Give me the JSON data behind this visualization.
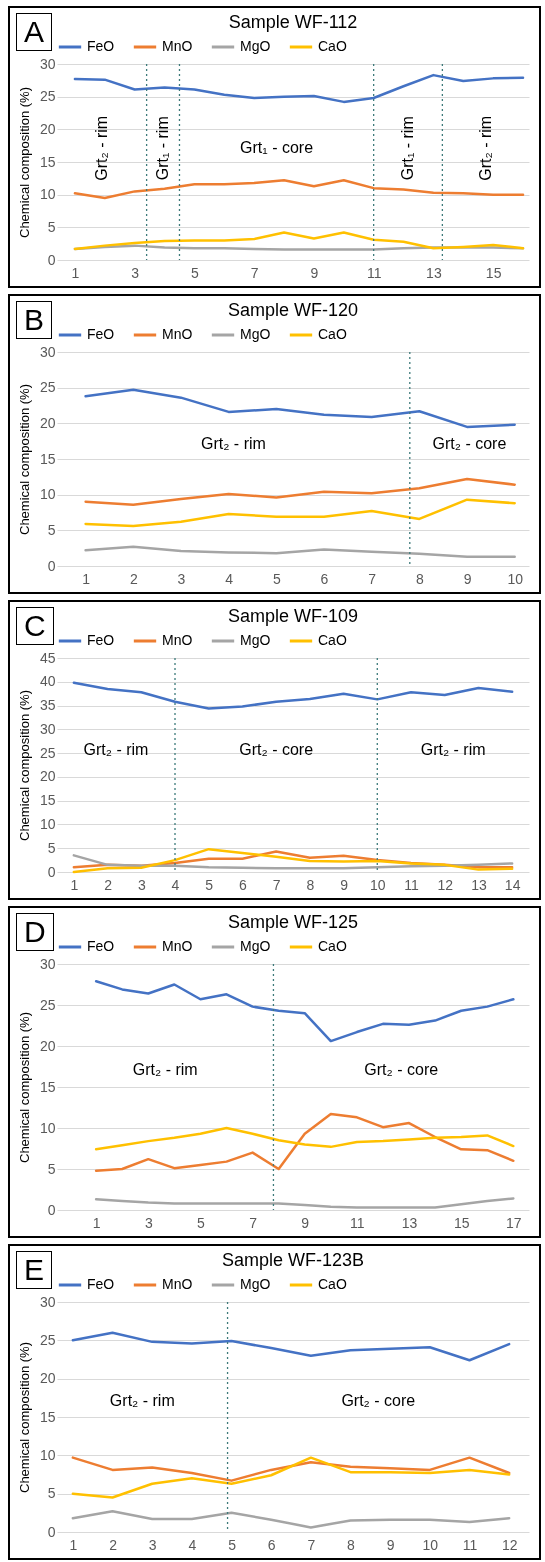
{
  "chart_data": [
    {
      "type": "line",
      "title": "Sample WF-112",
      "ylabel": "Chemical composition (%)",
      "x": [
        1,
        2,
        3,
        4,
        5,
        6,
        7,
        8,
        9,
        10,
        11,
        12,
        13,
        14,
        15,
        16
      ],
      "xlim": [
        0.4,
        16.2
      ],
      "xticks": [
        1,
        3,
        5,
        7,
        9,
        11,
        13,
        15
      ],
      "ylim": [
        0,
        30
      ],
      "yticks": [
        0,
        5,
        10,
        15,
        20,
        25,
        30
      ],
      "grid": "y",
      "legend": "top",
      "series": [
        {
          "name": "FeO",
          "color": "#4472c4",
          "values": [
            27.7,
            27.6,
            26.1,
            26.4,
            26.1,
            25.3,
            24.8,
            25.0,
            25.1,
            24.2,
            24.8,
            26.6,
            28.3,
            27.4,
            27.8,
            27.9
          ]
        },
        {
          "name": "MnO",
          "color": "#ed7d31",
          "values": [
            10.2,
            9.5,
            10.5,
            10.9,
            11.6,
            11.6,
            11.8,
            12.2,
            11.3,
            12.2,
            11.0,
            10.8,
            10.3,
            10.2,
            10.0,
            10.0
          ]
        },
        {
          "name": "MgO",
          "color": "#a5a5a5",
          "values": [
            1.7,
            2.0,
            2.2,
            1.9,
            1.8,
            1.8,
            1.7,
            1.6,
            1.6,
            1.6,
            1.6,
            1.8,
            1.9,
            1.9,
            1.9,
            1.8
          ]
        },
        {
          "name": "CaO",
          "color": "#ffc000",
          "values": [
            1.7,
            2.2,
            2.6,
            2.9,
            3.0,
            3.0,
            3.2,
            4.2,
            3.3,
            4.2,
            3.1,
            2.8,
            1.8,
            2.0,
            2.3,
            1.8
          ]
        }
      ],
      "ref_lines": [
        {
          "axis": "x",
          "value": 3.4,
          "color": "#3d7a7a",
          "line_style": "dotted"
        },
        {
          "axis": "x",
          "value": 4.5,
          "color": "#3d7a7a",
          "line_style": "dotted"
        },
        {
          "axis": "x",
          "value": 11,
          "color": "#3d7a7a",
          "line_style": "dotted"
        },
        {
          "axis": "x",
          "value": 13.3,
          "color": "#3d7a7a",
          "line_style": "dotted"
        }
      ],
      "annotations": [
        "A",
        "Grt₂ - rim",
        "Grt₁ - rim",
        "Grt₁ - core",
        "Grt₁ - rim",
        "Grt₂ - rim"
      ]
    },
    {
      "type": "line",
      "title": "Sample WF-120",
      "ylabel": "Chemical composition (%)",
      "x": [
        1,
        2,
        3,
        4,
        5,
        6,
        7,
        8,
        9,
        10
      ],
      "xlim": [
        0.4,
        10.3
      ],
      "xticks": [
        1,
        2,
        3,
        4,
        5,
        6,
        7,
        8,
        9,
        10
      ],
      "ylim": [
        0,
        30
      ],
      "yticks": [
        0,
        5,
        10,
        15,
        20,
        25,
        30
      ],
      "grid": "y",
      "legend": "top",
      "series": [
        {
          "name": "FeO",
          "color": "#4472c4",
          "values": [
            23.8,
            24.7,
            23.6,
            21.6,
            22.0,
            21.2,
            20.9,
            21.7,
            19.5,
            19.8
          ]
        },
        {
          "name": "MnO",
          "color": "#ed7d31",
          "values": [
            9.0,
            8.6,
            9.4,
            10.1,
            9.6,
            10.4,
            10.2,
            10.9,
            12.2,
            11.4
          ]
        },
        {
          "name": "MgO",
          "color": "#a5a5a5",
          "values": [
            2.2,
            2.7,
            2.1,
            1.9,
            1.8,
            2.3,
            2.0,
            1.7,
            1.3,
            1.3
          ]
        },
        {
          "name": "CaO",
          "color": "#ffc000",
          "values": [
            5.9,
            5.6,
            6.2,
            7.3,
            6.9,
            6.9,
            7.7,
            6.6,
            9.3,
            8.8
          ]
        }
      ],
      "ref_lines": [
        {
          "axis": "x",
          "value": 7.8,
          "color": "#3d7a7a",
          "line_style": "dotted"
        }
      ],
      "annotations": [
        "B",
        "Grt₂ - rim",
        "Grt₂ - core"
      ]
    },
    {
      "type": "line",
      "title": "Sample WF-109",
      "ylabel": "Chemical composition (%)",
      "x": [
        1,
        2,
        3,
        4,
        5,
        6,
        7,
        8,
        9,
        10,
        11,
        12,
        13,
        14
      ],
      "xlim": [
        0.5,
        14.5
      ],
      "xticks": [
        1,
        2,
        3,
        4,
        5,
        6,
        7,
        8,
        9,
        10,
        11,
        12,
        13,
        14
      ],
      "ylim": [
        0,
        45
      ],
      "yticks": [
        0,
        5,
        10,
        15,
        20,
        25,
        30,
        35,
        40,
        45
      ],
      "grid": "y",
      "legend": "top",
      "series": [
        {
          "name": "FeO",
          "color": "#4472c4",
          "values": [
            39.8,
            38.5,
            37.8,
            35.8,
            34.4,
            34.8,
            35.8,
            36.4,
            37.5,
            36.3,
            37.8,
            37.2,
            38.7,
            37.9
          ]
        },
        {
          "name": "MnO",
          "color": "#ed7d31",
          "values": [
            1.0,
            1.5,
            1.3,
            1.9,
            2.8,
            2.8,
            4.3,
            3.0,
            3.4,
            2.5,
            1.9,
            1.5,
            1.0,
            1.0
          ]
        },
        {
          "name": "MgO",
          "color": "#a5a5a5",
          "values": [
            3.5,
            1.5,
            1.3,
            1.3,
            1.0,
            0.9,
            0.8,
            0.8,
            0.8,
            1.0,
            1.2,
            1.3,
            1.5,
            1.8
          ]
        },
        {
          "name": "CaO",
          "color": "#ffc000",
          "values": [
            0.0,
            0.8,
            0.9,
            2.5,
            4.8,
            4.0,
            3.2,
            2.3,
            2.2,
            2.3,
            1.8,
            1.5,
            0.5,
            0.7
          ]
        }
      ],
      "ref_lines": [
        {
          "axis": "x",
          "value": 4,
          "color": "#3d7a7a",
          "line_style": "dotted"
        },
        {
          "axis": "x",
          "value": 10,
          "color": "#3d7a7a",
          "line_style": "dotted"
        }
      ],
      "annotations": [
        "C",
        "Grt₂ - rim",
        "Grt₂ - core",
        "Grt₂ - rim"
      ]
    },
    {
      "type": "line",
      "title": "Sample WF-125",
      "ylabel": "Chemical composition (%)",
      "x": [
        1,
        2,
        3,
        4,
        5,
        6,
        7,
        8,
        9,
        10,
        11,
        12,
        13,
        14,
        15,
        16,
        17
      ],
      "xlim": [
        -0.5,
        17.6
      ],
      "xticks": [
        1,
        3,
        5,
        7,
        9,
        11,
        13,
        15,
        17
      ],
      "ylim": [
        0,
        30
      ],
      "yticks": [
        0,
        5,
        10,
        15,
        20,
        25,
        30
      ],
      "grid": "y",
      "legend": "top",
      "series": [
        {
          "name": "FeO",
          "color": "#4472c4",
          "values": [
            27.9,
            26.9,
            26.4,
            27.5,
            25.7,
            26.3,
            24.8,
            24.3,
            24.0,
            20.6,
            21.7,
            22.7,
            22.6,
            23.1,
            24.3,
            24.8,
            25.7
          ]
        },
        {
          "name": "MnO",
          "color": "#ed7d31",
          "values": [
            4.8,
            5.0,
            6.2,
            5.1,
            5.5,
            5.9,
            7.0,
            5.0,
            9.3,
            11.7,
            11.3,
            10.1,
            10.6,
            8.9,
            7.4,
            7.3,
            6.0
          ]
        },
        {
          "name": "MgO",
          "color": "#a5a5a5",
          "values": [
            1.3,
            1.1,
            0.9,
            0.8,
            0.8,
            0.8,
            0.8,
            0.8,
            0.6,
            0.4,
            0.3,
            0.3,
            0.3,
            0.3,
            0.7,
            1.1,
            1.4
          ]
        },
        {
          "name": "CaO",
          "color": "#ffc000",
          "values": [
            7.4,
            7.9,
            8.4,
            8.8,
            9.3,
            10.0,
            9.3,
            8.5,
            8.0,
            7.7,
            8.3,
            8.4,
            8.6,
            8.8,
            8.9,
            9.1,
            7.8
          ]
        }
      ],
      "ref_lines": [
        {
          "axis": "x",
          "value": 7.8,
          "color": "#3d7a7a",
          "line_style": "dotted"
        }
      ],
      "annotations": [
        "D",
        "Grt₂ - rim",
        "Grt₂ - core"
      ]
    },
    {
      "type": "line",
      "title": "Sample WF-123B",
      "ylabel": "Chemical composition (%)",
      "x": [
        1,
        2,
        3,
        4,
        5,
        6,
        7,
        8,
        9,
        10,
        11,
        12
      ],
      "xlim": [
        0.6,
        12.5
      ],
      "xticks": [
        1,
        2,
        3,
        4,
        5,
        6,
        7,
        8,
        9,
        10,
        11,
        12
      ],
      "ylim": [
        0,
        30
      ],
      "yticks": [
        0,
        5,
        10,
        15,
        20,
        25,
        30
      ],
      "grid": "y",
      "legend": "top",
      "series": [
        {
          "name": "FeO",
          "color": "#4472c4",
          "values": [
            25.0,
            26.0,
            24.8,
            24.6,
            24.9,
            24.0,
            23.0,
            23.7,
            23.9,
            24.1,
            22.4,
            24.5
          ]
        },
        {
          "name": "MnO",
          "color": "#ed7d31",
          "values": [
            9.7,
            8.1,
            8.4,
            7.7,
            6.7,
            8.1,
            9.1,
            8.5,
            8.3,
            8.1,
            9.7,
            7.7
          ]
        },
        {
          "name": "MgO",
          "color": "#a5a5a5",
          "values": [
            1.8,
            2.7,
            1.7,
            1.7,
            2.5,
            1.6,
            0.6,
            1.5,
            1.6,
            1.6,
            1.3,
            1.8
          ]
        },
        {
          "name": "CaO",
          "color": "#ffc000",
          "values": [
            5.0,
            4.5,
            6.3,
            7.0,
            6.3,
            7.4,
            9.7,
            7.8,
            7.8,
            7.7,
            8.1,
            7.5
          ]
        }
      ],
      "ref_lines": [
        {
          "axis": "x",
          "value": 4.9,
          "color": "#3d7a7a",
          "line_style": "dotted"
        }
      ],
      "annotations": [
        "E",
        "Grt₂ - rim",
        "Grt₂ - core"
      ]
    }
  ]
}
